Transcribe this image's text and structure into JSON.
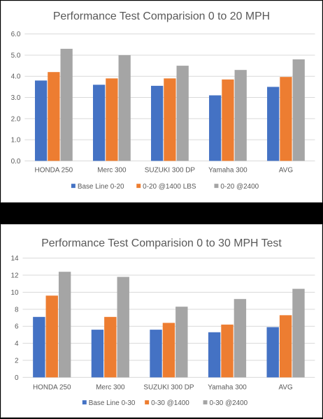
{
  "colors": {
    "series": [
      "#4472C4",
      "#ED7D31",
      "#A5A5A5"
    ],
    "grid": "#d9d9d9",
    "text": "#595959"
  },
  "chart_data": [
    {
      "type": "bar",
      "title": "Performance Test Comparision 0 to 20 MPH",
      "xlabel": "",
      "ylabel": "",
      "ylim": [
        0,
        6
      ],
      "yticks": [
        "0.0",
        "1.0",
        "2.0",
        "3.0",
        "4.0",
        "5.0",
        "6.0"
      ],
      "grid": true,
      "legend_position": "bottom",
      "categories": [
        "HONDA 250",
        "Merc 300",
        "SUZUKI 300 DP",
        "Yamaha 300",
        "AVG"
      ],
      "series": [
        {
          "name": "Base Line 0-20",
          "values": [
            3.8,
            3.6,
            3.55,
            3.1,
            3.5
          ]
        },
        {
          "name": "0-20 @1400 LBS",
          "values": [
            4.2,
            3.9,
            3.9,
            3.85,
            3.97
          ]
        },
        {
          "name": "0-20 @2400",
          "values": [
            5.3,
            5.0,
            4.5,
            4.3,
            4.8
          ]
        }
      ]
    },
    {
      "type": "bar",
      "title": "Performance Test Comparision 0 to 30 MPH Test",
      "xlabel": "",
      "ylabel": "",
      "ylim": [
        0,
        14
      ],
      "yticks": [
        "0",
        "2",
        "4",
        "6",
        "8",
        "10",
        "12",
        "14"
      ],
      "grid": true,
      "legend_position": "bottom",
      "categories": [
        "HONDA 250",
        "Merc 300",
        "SUZUKI 300 DP",
        "Yamaha 300",
        "AVG"
      ],
      "series": [
        {
          "name": "Base Line 0-30",
          "values": [
            7.1,
            5.6,
            5.6,
            5.3,
            5.9
          ]
        },
        {
          "name": "0-30 @1400",
          "values": [
            9.6,
            7.1,
            6.4,
            6.2,
            7.3
          ]
        },
        {
          "name": "0-30 @2400",
          "values": [
            12.4,
            11.8,
            8.3,
            9.2,
            10.4
          ]
        }
      ]
    }
  ]
}
